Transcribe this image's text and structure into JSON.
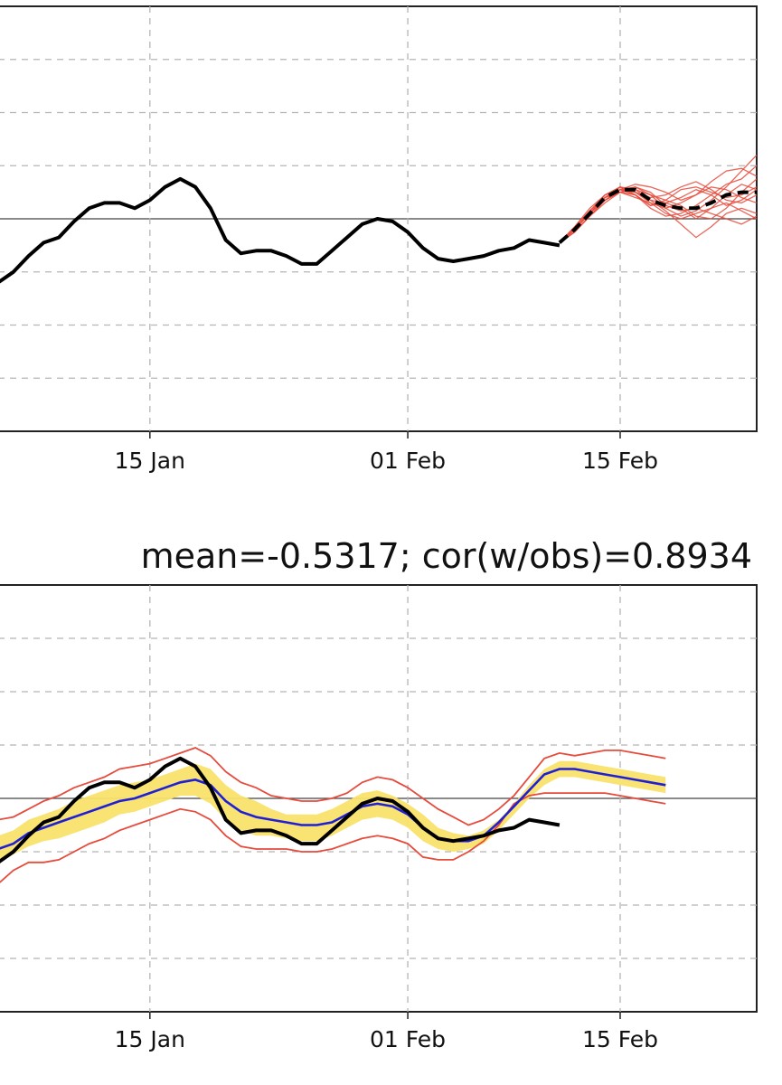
{
  "chart_data": [
    {
      "type": "line",
      "title": "",
      "x_tick_labels": [
        "15 Jan",
        "01 Feb",
        "15 Feb"
      ],
      "x_tick_dates": [
        "2019-01-15",
        "2019-02-01",
        "2019-02-15"
      ],
      "xlim": [
        "2019-01-05",
        "2019-02-24"
      ],
      "ylim": [
        -4,
        4
      ],
      "grid": true,
      "zero_line": true,
      "series": [
        {
          "role": "observed",
          "color": "#000000",
          "style": "solid",
          "x": [
            "2019-01-05",
            "2019-01-06",
            "2019-01-07",
            "2019-01-08",
            "2019-01-09",
            "2019-01-10",
            "2019-01-11",
            "2019-01-12",
            "2019-01-13",
            "2019-01-14",
            "2019-01-15",
            "2019-01-16",
            "2019-01-17",
            "2019-01-18",
            "2019-01-19",
            "2019-01-20",
            "2019-01-21",
            "2019-01-22",
            "2019-01-23",
            "2019-01-24",
            "2019-01-25",
            "2019-01-26",
            "2019-01-27",
            "2019-01-28",
            "2019-01-29",
            "2019-01-30",
            "2019-01-31",
            "2019-02-01",
            "2019-02-02",
            "2019-02-03",
            "2019-02-04",
            "2019-02-05",
            "2019-02-06",
            "2019-02-07",
            "2019-02-08",
            "2019-02-09",
            "2019-02-10",
            "2019-02-11"
          ],
          "values": [
            -1.2,
            -1.0,
            -0.7,
            -0.45,
            -0.35,
            -0.05,
            0.2,
            0.3,
            0.3,
            0.2,
            0.35,
            0.6,
            0.75,
            0.6,
            0.2,
            -0.4,
            -0.65,
            -0.6,
            -0.6,
            -0.7,
            -0.85,
            -0.85,
            -0.6,
            -0.35,
            -0.1,
            0.0,
            -0.05,
            -0.25,
            -0.55,
            -0.75,
            -0.8,
            -0.75,
            -0.7,
            -0.6,
            -0.55,
            -0.4,
            -0.45,
            -0.5
          ]
        },
        {
          "role": "ensemble-mean",
          "color": "#000000",
          "style": "dashed",
          "x": [
            "2019-02-11",
            "2019-02-12",
            "2019-02-13",
            "2019-02-14",
            "2019-02-15",
            "2019-02-16",
            "2019-02-17",
            "2019-02-18",
            "2019-02-19",
            "2019-02-20",
            "2019-02-21",
            "2019-02-22",
            "2019-02-23",
            "2019-02-24"
          ],
          "values": [
            -0.45,
            -0.2,
            0.1,
            0.4,
            0.55,
            0.55,
            0.35,
            0.25,
            0.2,
            0.2,
            0.3,
            0.45,
            0.5,
            0.5
          ]
        },
        {
          "role": "ensemble-member",
          "color": "#e64b3c",
          "style": "solid-thin",
          "x": [
            "2019-02-11",
            "2019-02-12",
            "2019-02-13",
            "2019-02-14",
            "2019-02-15",
            "2019-02-16",
            "2019-02-17",
            "2019-02-18",
            "2019-02-19",
            "2019-02-20",
            "2019-02-21",
            "2019-02-22",
            "2019-02-23",
            "2019-02-24"
          ],
          "members": [
            [
              -0.45,
              -0.25,
              0.05,
              0.35,
              0.55,
              0.6,
              0.45,
              0.2,
              0.05,
              0.15,
              0.35,
              0.6,
              0.9,
              1.2
            ],
            [
              -0.45,
              -0.2,
              0.1,
              0.4,
              0.5,
              0.45,
              0.25,
              0.35,
              0.55,
              0.6,
              0.5,
              0.4,
              0.45,
              0.6
            ],
            [
              -0.45,
              -0.15,
              0.15,
              0.45,
              0.6,
              0.55,
              0.35,
              0.15,
              -0.1,
              -0.35,
              -0.15,
              0.1,
              0.2,
              0.1
            ],
            [
              -0.45,
              -0.2,
              0.1,
              0.4,
              0.55,
              0.65,
              0.6,
              0.5,
              0.35,
              0.45,
              0.7,
              0.9,
              0.95,
              0.8
            ],
            [
              -0.45,
              -0.25,
              0.05,
              0.35,
              0.5,
              0.4,
              0.3,
              0.1,
              0.0,
              0.1,
              0.2,
              0.3,
              0.15,
              0.0
            ],
            [
              -0.45,
              -0.2,
              0.1,
              0.45,
              0.6,
              0.5,
              0.35,
              0.3,
              0.4,
              0.55,
              0.45,
              0.25,
              0.35,
              0.55
            ],
            [
              -0.45,
              -0.2,
              0.15,
              0.4,
              0.55,
              0.45,
              0.2,
              0.05,
              0.1,
              0.25,
              0.45,
              0.65,
              0.75,
              1.0
            ],
            [
              -0.45,
              -0.2,
              0.1,
              0.35,
              0.5,
              0.55,
              0.45,
              0.35,
              0.25,
              0.05,
              0.0,
              0.2,
              0.5,
              0.75
            ],
            [
              -0.45,
              -0.15,
              0.2,
              0.45,
              0.55,
              0.5,
              0.3,
              0.2,
              0.3,
              0.45,
              0.6,
              0.55,
              0.4,
              0.3
            ],
            [
              -0.45,
              -0.25,
              0.05,
              0.3,
              0.5,
              0.6,
              0.5,
              0.25,
              0.15,
              0.2,
              0.1,
              0.0,
              -0.1,
              0.05
            ],
            [
              -0.45,
              -0.2,
              0.1,
              0.4,
              0.6,
              0.45,
              0.25,
              0.3,
              0.2,
              0.0,
              0.2,
              0.45,
              0.65,
              0.55
            ],
            [
              -0.45,
              -0.2,
              0.1,
              0.4,
              0.55,
              0.5,
              0.4,
              0.45,
              0.6,
              0.7,
              0.55,
              0.35,
              0.3,
              0.45
            ]
          ]
        }
      ]
    },
    {
      "type": "line",
      "title": "mean=-0.5317; cor(w/obs)=0.8934",
      "x_tick_labels": [
        "15 Jan",
        "01 Feb",
        "15 Feb"
      ],
      "x_tick_dates": [
        "2019-01-15",
        "2019-02-01",
        "2019-02-15"
      ],
      "xlim": [
        "2019-01-05",
        "2019-02-24"
      ],
      "ylim": [
        -4,
        4
      ],
      "grid": true,
      "zero_line": true,
      "x": [
        "2019-01-05",
        "2019-01-06",
        "2019-01-07",
        "2019-01-08",
        "2019-01-09",
        "2019-01-10",
        "2019-01-11",
        "2019-01-12",
        "2019-01-13",
        "2019-01-14",
        "2019-01-15",
        "2019-01-16",
        "2019-01-17",
        "2019-01-18",
        "2019-01-19",
        "2019-01-20",
        "2019-01-21",
        "2019-01-22",
        "2019-01-23",
        "2019-01-24",
        "2019-01-25",
        "2019-01-26",
        "2019-01-27",
        "2019-01-28",
        "2019-01-29",
        "2019-01-30",
        "2019-01-31",
        "2019-02-01",
        "2019-02-02",
        "2019-02-03",
        "2019-02-04",
        "2019-02-05",
        "2019-02-06",
        "2019-02-07",
        "2019-02-08",
        "2019-02-09",
        "2019-02-10",
        "2019-02-11",
        "2019-02-12",
        "2019-02-13",
        "2019-02-14",
        "2019-02-15",
        "2019-02-16",
        "2019-02-17",
        "2019-02-18"
      ],
      "series": [
        {
          "role": "outer-envelope-upper",
          "color": "#e64b3c",
          "values": [
            -0.4,
            -0.35,
            -0.2,
            -0.05,
            0.05,
            0.2,
            0.3,
            0.4,
            0.55,
            0.6,
            0.65,
            0.75,
            0.85,
            0.95,
            0.8,
            0.5,
            0.3,
            0.2,
            0.05,
            0.0,
            -0.05,
            -0.05,
            0.0,
            0.1,
            0.3,
            0.4,
            0.35,
            0.2,
            0.0,
            -0.2,
            -0.35,
            -0.5,
            -0.4,
            -0.2,
            0.05,
            0.4,
            0.75,
            0.85,
            0.8,
            0.85,
            0.9,
            0.9,
            0.85,
            0.8,
            0.75
          ]
        },
        {
          "role": "outer-envelope-lower",
          "color": "#e64b3c",
          "values": [
            -1.6,
            -1.35,
            -1.2,
            -1.2,
            -1.15,
            -1.0,
            -0.85,
            -0.75,
            -0.6,
            -0.5,
            -0.4,
            -0.3,
            -0.2,
            -0.25,
            -0.4,
            -0.7,
            -0.9,
            -0.95,
            -0.95,
            -0.95,
            -1.0,
            -1.0,
            -0.95,
            -0.85,
            -0.75,
            -0.7,
            -0.75,
            -0.85,
            -1.1,
            -1.15,
            -1.15,
            -1.0,
            -0.8,
            -0.5,
            -0.1,
            0.05,
            0.1,
            0.1,
            0.1,
            0.1,
            0.1,
            0.05,
            0.0,
            -0.05,
            -0.1
          ]
        },
        {
          "role": "shaded-band-upper",
          "color": "#f9e16b",
          "values": [
            -0.7,
            -0.6,
            -0.4,
            -0.3,
            -0.2,
            -0.05,
            0.05,
            0.15,
            0.25,
            0.3,
            0.35,
            0.45,
            0.55,
            0.65,
            0.55,
            0.25,
            0.05,
            -0.05,
            -0.2,
            -0.3,
            -0.3,
            -0.3,
            -0.2,
            -0.05,
            0.1,
            0.15,
            0.05,
            -0.1,
            -0.3,
            -0.55,
            -0.65,
            -0.7,
            -0.6,
            -0.4,
            -0.1,
            0.25,
            0.55,
            0.7,
            0.7,
            0.65,
            0.6,
            0.55,
            0.5,
            0.45,
            0.4
          ]
        },
        {
          "role": "shaded-band-lower",
          "color": "#f9e16b",
          "values": [
            -1.2,
            -1.05,
            -0.9,
            -0.8,
            -0.75,
            -0.65,
            -0.55,
            -0.45,
            -0.3,
            -0.25,
            -0.15,
            -0.05,
            0.05,
            0.05,
            -0.1,
            -0.4,
            -0.6,
            -0.7,
            -0.7,
            -0.75,
            -0.8,
            -0.8,
            -0.7,
            -0.55,
            -0.4,
            -0.35,
            -0.4,
            -0.55,
            -0.8,
            -0.95,
            -1.0,
            -0.95,
            -0.85,
            -0.6,
            -0.3,
            0.0,
            0.25,
            0.4,
            0.4,
            0.35,
            0.3,
            0.25,
            0.2,
            0.15,
            0.1
          ]
        },
        {
          "role": "ensemble-mean",
          "color": "#1f1fd6",
          "values": [
            -0.95,
            -0.85,
            -0.65,
            -0.55,
            -0.45,
            -0.35,
            -0.25,
            -0.15,
            -0.05,
            0.0,
            0.1,
            0.2,
            0.3,
            0.35,
            0.25,
            -0.05,
            -0.25,
            -0.35,
            -0.4,
            -0.45,
            -0.5,
            -0.5,
            -0.45,
            -0.3,
            -0.15,
            -0.1,
            -0.15,
            -0.3,
            -0.55,
            -0.75,
            -0.8,
            -0.8,
            -0.7,
            -0.45,
            -0.15,
            0.15,
            0.45,
            0.55,
            0.55,
            0.5,
            0.45,
            0.4,
            0.35,
            0.3,
            0.25
          ]
        },
        {
          "role": "observed",
          "color": "#000000",
          "values": [
            -1.2,
            -1.0,
            -0.7,
            -0.45,
            -0.35,
            -0.05,
            0.2,
            0.3,
            0.3,
            0.2,
            0.35,
            0.6,
            0.75,
            0.6,
            0.2,
            -0.4,
            -0.65,
            -0.6,
            -0.6,
            -0.7,
            -0.85,
            -0.85,
            -0.6,
            -0.35,
            -0.1,
            0.0,
            -0.05,
            -0.25,
            -0.55,
            -0.75,
            -0.8,
            -0.75,
            -0.7,
            -0.6,
            -0.55,
            -0.4,
            -0.45,
            -0.5,
            null,
            null,
            null,
            null,
            null,
            null,
            null
          ]
        }
      ]
    }
  ]
}
